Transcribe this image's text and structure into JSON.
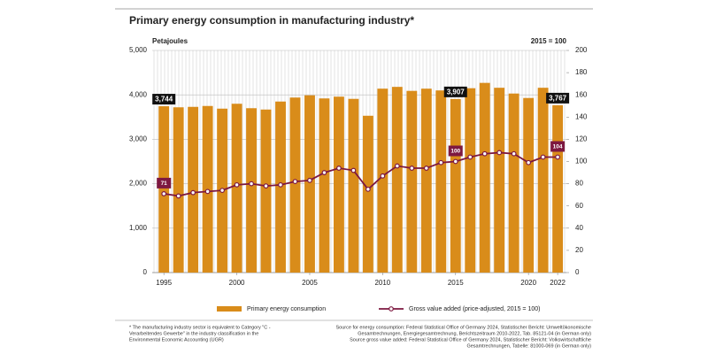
{
  "chart_data": {
    "type": "bar-line",
    "title": "Primary energy consumption in manufacturing industry*",
    "y_label": "Petajoules",
    "y2_label": "2015 = 100",
    "x": [
      1995,
      1996,
      1997,
      1998,
      1999,
      2000,
      2001,
      2002,
      2003,
      2004,
      2005,
      2006,
      2007,
      2008,
      2009,
      2010,
      2011,
      2012,
      2013,
      2014,
      2015,
      2016,
      2017,
      2018,
      2019,
      2020,
      2021,
      2022
    ],
    "xlim": [
      1994.2,
      2022.6
    ],
    "xticks": [
      1995,
      2000,
      2005,
      2010,
      2015,
      2020,
      2022
    ],
    "ylim": [
      0,
      5000
    ],
    "yticks": [
      0,
      {
        "value": 1000,
        "label": "1,000"
      },
      {
        "value": 2000,
        "label": "2,000"
      },
      {
        "value": 3000,
        "label": "3,000"
      },
      {
        "value": 4000,
        "label": "4,000"
      },
      {
        "value": 5000,
        "label": "5,000"
      }
    ],
    "y2lim": [
      0,
      200
    ],
    "y2ticks": [
      0,
      20,
      40,
      60,
      80,
      100,
      120,
      140,
      160,
      180,
      200
    ],
    "grid": true,
    "series": [
      {
        "name": "Primary energy consumption",
        "kind": "bar",
        "color": "#d98c1a",
        "values": [
          3744,
          3720,
          3730,
          3750,
          3690,
          3800,
          3700,
          3670,
          3850,
          3940,
          3990,
          3920,
          3960,
          3910,
          3530,
          4140,
          4180,
          4090,
          4140,
          4100,
          3907,
          4150,
          4270,
          4160,
          4030,
          3930,
          4160,
          3767
        ],
        "value_labels": [
          "3,744",
          null,
          null,
          null,
          null,
          null,
          null,
          null,
          null,
          null,
          null,
          null,
          null,
          null,
          null,
          null,
          null,
          null,
          null,
          null,
          "3,907",
          null,
          null,
          null,
          null,
          null,
          null,
          "3,767"
        ]
      },
      {
        "name": "Gross value added (price-adjusted, 2015 = 100)",
        "kind": "line",
        "axis": "y2",
        "color": "#7d1840",
        "values": [
          71,
          69,
          72,
          73,
          74,
          79,
          80,
          78,
          79,
          82,
          83,
          90,
          94,
          92,
          75,
          87,
          96,
          94,
          94,
          99,
          100,
          104,
          107,
          108,
          107,
          99,
          104,
          104
        ],
        "value_labels": [
          "71",
          null,
          null,
          null,
          null,
          null,
          null,
          null,
          null,
          null,
          null,
          null,
          null,
          null,
          null,
          null,
          null,
          null,
          null,
          null,
          "100",
          null,
          null,
          null,
          null,
          null,
          null,
          "104"
        ]
      }
    ],
    "footnote": [
      "* The manufacturing industry sector is equivalent to Category \"C -",
      "Verarbeitendes Gewerbe\" in the industry classification in the",
      "Environmental Economic Accounting (UGR)"
    ],
    "sources": [
      "Source for energy consumption: Federal Statistical Office of Germany 2024, Statistischer Bericht: Umweltökonomische",
      "Gesamtrechnungen, Energiegesamtrechnung, Berichtszeitraum 2010-2022, Tab. 85121-04 (in German only)",
      "Source gross value added: Federal Statistical Office of Germany 2024, Statistischer Bericht: Volkswirtschaftliche",
      "Gesamtrechnungen, Tabelle: 81000-069 (in German only)"
    ]
  }
}
